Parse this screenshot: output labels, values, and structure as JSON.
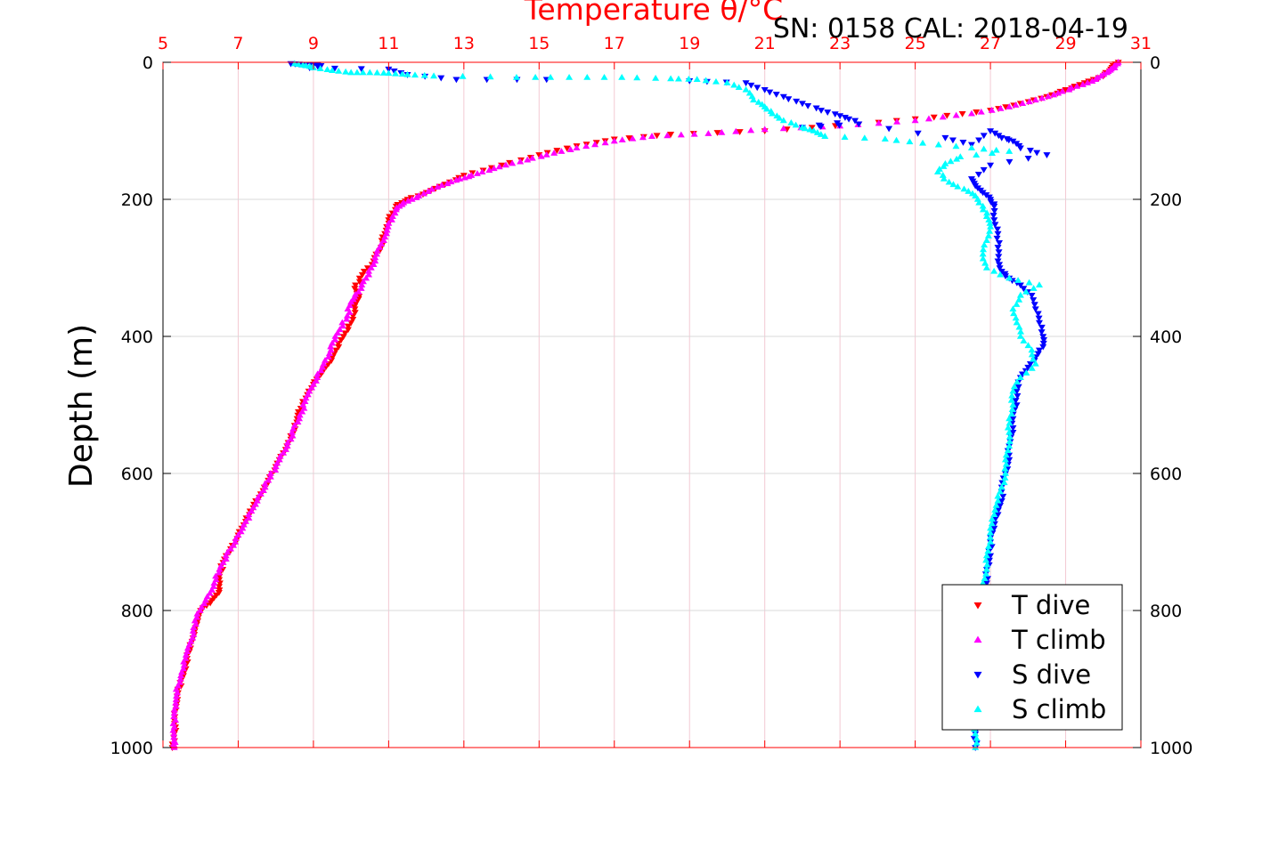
{
  "chart_data": {
    "type": "scatter",
    "title": "Temperature θ/°C",
    "subtitle": "SN: 0158  CAL: 2018-04-19",
    "xlabel": "",
    "ylabel": "Depth (m)",
    "xlim": [
      5,
      31
    ],
    "ylim": [
      0,
      1000
    ],
    "y_reversed": true,
    "x_ticks": [
      "5",
      "7",
      "9",
      "11",
      "13",
      "15",
      "17",
      "19",
      "21",
      "23",
      "25",
      "27",
      "29",
      "31"
    ],
    "y_ticks": [
      "0",
      "200",
      "400",
      "600",
      "800",
      "1000"
    ],
    "grid": true,
    "legend_position": "bottom-right",
    "colors": {
      "temperature_axis": "#ff0000",
      "grid": "#d9d9d9",
      "temperature_grid": "#f3c9d3"
    },
    "series": [
      {
        "name": "T dive",
        "marker": "triangle-down",
        "color": "#ff0000",
        "points": [
          [
            30.4,
            0
          ],
          [
            30.2,
            10
          ],
          [
            30.0,
            20
          ],
          [
            29.5,
            30
          ],
          [
            29.0,
            40
          ],
          [
            28.5,
            50
          ],
          [
            27.8,
            60
          ],
          [
            27.0,
            70
          ],
          [
            25.5,
            80
          ],
          [
            23.5,
            90
          ],
          [
            21.0,
            100
          ],
          [
            18.5,
            105
          ],
          [
            17.0,
            112
          ],
          [
            16.0,
            122
          ],
          [
            15.0,
            135
          ],
          [
            14.0,
            150
          ],
          [
            13.0,
            165
          ],
          [
            12.5,
            178
          ],
          [
            12.0,
            190
          ],
          [
            11.5,
            200
          ],
          [
            11.2,
            210
          ],
          [
            11.0,
            230
          ],
          [
            10.9,
            250
          ],
          [
            10.8,
            270
          ],
          [
            10.6,
            290
          ],
          [
            10.3,
            310
          ],
          [
            10.1,
            330
          ],
          [
            10.2,
            345
          ],
          [
            10.1,
            360
          ],
          [
            10.0,
            380
          ],
          [
            9.8,
            400
          ],
          [
            9.6,
            420
          ],
          [
            9.4,
            440
          ],
          [
            9.2,
            455
          ],
          [
            9.0,
            470
          ],
          [
            8.8,
            490
          ],
          [
            8.6,
            510
          ],
          [
            8.5,
            530
          ],
          [
            8.4,
            550
          ],
          [
            8.2,
            570
          ],
          [
            8.0,
            590
          ],
          [
            7.8,
            610
          ],
          [
            7.6,
            630
          ],
          [
            7.4,
            650
          ],
          [
            7.2,
            670
          ],
          [
            7.0,
            690
          ],
          [
            6.8,
            710
          ],
          [
            6.6,
            730
          ],
          [
            6.5,
            750
          ],
          [
            6.5,
            770
          ],
          [
            6.3,
            785
          ],
          [
            6.0,
            800
          ],
          [
            5.9,
            820
          ],
          [
            5.8,
            840
          ],
          [
            5.7,
            860
          ],
          [
            5.6,
            880
          ],
          [
            5.5,
            900
          ],
          [
            5.4,
            920
          ],
          [
            5.35,
            940
          ],
          [
            5.3,
            960
          ],
          [
            5.3,
            980
          ],
          [
            5.25,
            1000
          ]
        ]
      },
      {
        "name": "T climb",
        "marker": "triangle-up",
        "color": "#ff00ff",
        "points": [
          [
            30.4,
            0
          ],
          [
            30.3,
            8
          ],
          [
            30.1,
            15
          ],
          [
            29.8,
            25
          ],
          [
            29.3,
            35
          ],
          [
            28.8,
            45
          ],
          [
            28.2,
            55
          ],
          [
            27.5,
            65
          ],
          [
            26.5,
            75
          ],
          [
            25.0,
            85
          ],
          [
            23.0,
            93
          ],
          [
            21.0,
            98
          ],
          [
            19.5,
            104
          ],
          [
            18.0,
            108
          ],
          [
            17.0,
            115
          ],
          [
            16.0,
            125
          ],
          [
            15.2,
            135
          ],
          [
            14.5,
            145
          ],
          [
            13.8,
            155
          ],
          [
            13.2,
            165
          ],
          [
            12.8,
            172
          ],
          [
            12.3,
            182
          ],
          [
            11.8,
            195
          ],
          [
            11.4,
            205
          ],
          [
            11.2,
            215
          ],
          [
            11.0,
            235
          ],
          [
            10.9,
            255
          ],
          [
            10.7,
            275
          ],
          [
            10.6,
            295
          ],
          [
            10.4,
            315
          ],
          [
            10.2,
            335
          ],
          [
            10.0,
            350
          ],
          [
            9.9,
            370
          ],
          [
            9.7,
            390
          ],
          [
            9.5,
            410
          ],
          [
            9.4,
            430
          ],
          [
            9.2,
            450
          ],
          [
            9.0,
            470
          ],
          [
            8.8,
            490
          ],
          [
            8.7,
            510
          ],
          [
            8.5,
            530
          ],
          [
            8.4,
            550
          ],
          [
            8.2,
            570
          ],
          [
            8.0,
            590
          ],
          [
            7.8,
            610
          ],
          [
            7.6,
            630
          ],
          [
            7.4,
            650
          ],
          [
            7.2,
            670
          ],
          [
            7.0,
            690
          ],
          [
            6.8,
            710
          ],
          [
            6.6,
            730
          ],
          [
            6.4,
            750
          ],
          [
            6.3,
            770
          ],
          [
            6.1,
            790
          ],
          [
            5.9,
            810
          ],
          [
            5.8,
            830
          ],
          [
            5.7,
            850
          ],
          [
            5.6,
            870
          ],
          [
            5.5,
            890
          ],
          [
            5.4,
            910
          ],
          [
            5.35,
            930
          ],
          [
            5.3,
            950
          ],
          [
            5.3,
            970
          ],
          [
            5.3,
            990
          ],
          [
            5.3,
            1000
          ]
        ]
      },
      {
        "name": "S dive",
        "marker": "triangle-down",
        "color": "#0000ff",
        "points": [
          [
            8.4,
            2
          ],
          [
            8.7,
            3
          ],
          [
            9.0,
            3
          ],
          [
            9.2,
            5
          ],
          [
            8.9,
            8
          ],
          [
            11.0,
            10
          ],
          [
            11.5,
            18
          ],
          [
            12.8,
            25
          ],
          [
            15.2,
            25
          ],
          [
            19.0,
            27
          ],
          [
            20.5,
            30
          ],
          [
            21.0,
            40
          ],
          [
            21.5,
            50
          ],
          [
            22.0,
            60
          ],
          [
            22.5,
            70
          ],
          [
            23.0,
            78
          ],
          [
            23.4,
            85
          ],
          [
            22.0,
            95
          ],
          [
            23.5,
            90
          ],
          [
            25.8,
            110
          ],
          [
            26.5,
            120
          ],
          [
            27.0,
            100
          ],
          [
            27.3,
            110
          ],
          [
            27.6,
            115
          ],
          [
            27.8,
            125
          ],
          [
            28.5,
            135
          ],
          [
            27.0,
            150
          ],
          [
            26.5,
            170
          ],
          [
            26.6,
            180
          ],
          [
            26.8,
            190
          ],
          [
            27.0,
            200
          ],
          [
            27.1,
            210
          ],
          [
            27.1,
            230
          ],
          [
            27.2,
            250
          ],
          [
            27.2,
            270
          ],
          [
            27.2,
            290
          ],
          [
            27.3,
            305
          ],
          [
            27.5,
            315
          ],
          [
            27.8,
            325
          ],
          [
            28.1,
            340
          ],
          [
            28.2,
            360
          ],
          [
            28.3,
            380
          ],
          [
            28.4,
            400
          ],
          [
            28.4,
            415
          ],
          [
            28.2,
            430
          ],
          [
            28.0,
            445
          ],
          [
            27.8,
            460
          ],
          [
            27.7,
            480
          ],
          [
            27.7,
            500
          ],
          [
            27.6,
            520
          ],
          [
            27.6,
            540
          ],
          [
            27.5,
            560
          ],
          [
            27.5,
            580
          ],
          [
            27.4,
            600
          ],
          [
            27.3,
            620
          ],
          [
            27.3,
            640
          ],
          [
            27.2,
            660
          ],
          [
            27.1,
            680
          ],
          [
            27.0,
            700
          ],
          [
            27.0,
            720
          ],
          [
            26.9,
            740
          ],
          [
            26.9,
            760
          ],
          [
            26.8,
            780
          ],
          [
            26.8,
            800
          ],
          [
            26.8,
            820
          ],
          [
            26.7,
            840
          ],
          [
            26.7,
            860
          ],
          [
            26.7,
            880
          ],
          [
            26.6,
            900
          ],
          [
            26.6,
            920
          ],
          [
            26.6,
            940
          ],
          [
            26.6,
            960
          ],
          [
            26.6,
            980
          ],
          [
            26.6,
            1000
          ]
        ]
      },
      {
        "name": "S climb",
        "marker": "triangle-up",
        "color": "#00ffff",
        "points": [
          [
            8.5,
            2
          ],
          [
            8.8,
            5
          ],
          [
            9.0,
            8
          ],
          [
            9.5,
            12
          ],
          [
            10.0,
            15
          ],
          [
            10.5,
            15
          ],
          [
            11.0,
            16
          ],
          [
            11.5,
            18
          ],
          [
            12.2,
            20
          ],
          [
            14.4,
            22
          ],
          [
            15.8,
            22
          ],
          [
            17.2,
            22
          ],
          [
            18.5,
            24
          ],
          [
            19.2,
            25
          ],
          [
            20.0,
            30
          ],
          [
            20.5,
            40
          ],
          [
            20.7,
            55
          ],
          [
            21.0,
            65
          ],
          [
            21.2,
            75
          ],
          [
            21.5,
            85
          ],
          [
            22.0,
            95
          ],
          [
            22.3,
            100
          ],
          [
            22.6,
            108
          ],
          [
            24.2,
            112
          ],
          [
            25.2,
            118
          ],
          [
            26.5,
            125
          ],
          [
            27.5,
            130
          ],
          [
            26.2,
            138
          ],
          [
            25.8,
            148
          ],
          [
            25.6,
            160
          ],
          [
            25.9,
            175
          ],
          [
            26.3,
            185
          ],
          [
            26.6,
            195
          ],
          [
            26.8,
            210
          ],
          [
            26.9,
            225
          ],
          [
            27.0,
            240
          ],
          [
            26.9,
            260
          ],
          [
            26.8,
            280
          ],
          [
            26.9,
            300
          ],
          [
            27.5,
            315
          ],
          [
            28.3,
            325
          ],
          [
            27.8,
            340
          ],
          [
            27.6,
            360
          ],
          [
            27.7,
            380
          ],
          [
            27.8,
            400
          ],
          [
            28.1,
            420
          ],
          [
            28.2,
            440
          ],
          [
            27.8,
            460
          ],
          [
            27.6,
            480
          ],
          [
            27.6,
            500
          ],
          [
            27.5,
            520
          ],
          [
            27.5,
            540
          ],
          [
            27.5,
            560
          ],
          [
            27.4,
            580
          ],
          [
            27.4,
            600
          ],
          [
            27.3,
            620
          ],
          [
            27.2,
            640
          ],
          [
            27.1,
            660
          ],
          [
            27.0,
            680
          ],
          [
            27.0,
            700
          ],
          [
            26.9,
            720
          ],
          [
            26.9,
            740
          ],
          [
            26.8,
            760
          ],
          [
            26.8,
            780
          ],
          [
            26.8,
            800
          ],
          [
            26.7,
            820
          ],
          [
            26.7,
            840
          ],
          [
            26.7,
            860
          ],
          [
            26.7,
            880
          ],
          [
            26.6,
            900
          ],
          [
            26.6,
            920
          ],
          [
            26.6,
            940
          ],
          [
            26.6,
            960
          ],
          [
            26.6,
            980
          ],
          [
            26.6,
            1000
          ]
        ]
      }
    ]
  }
}
